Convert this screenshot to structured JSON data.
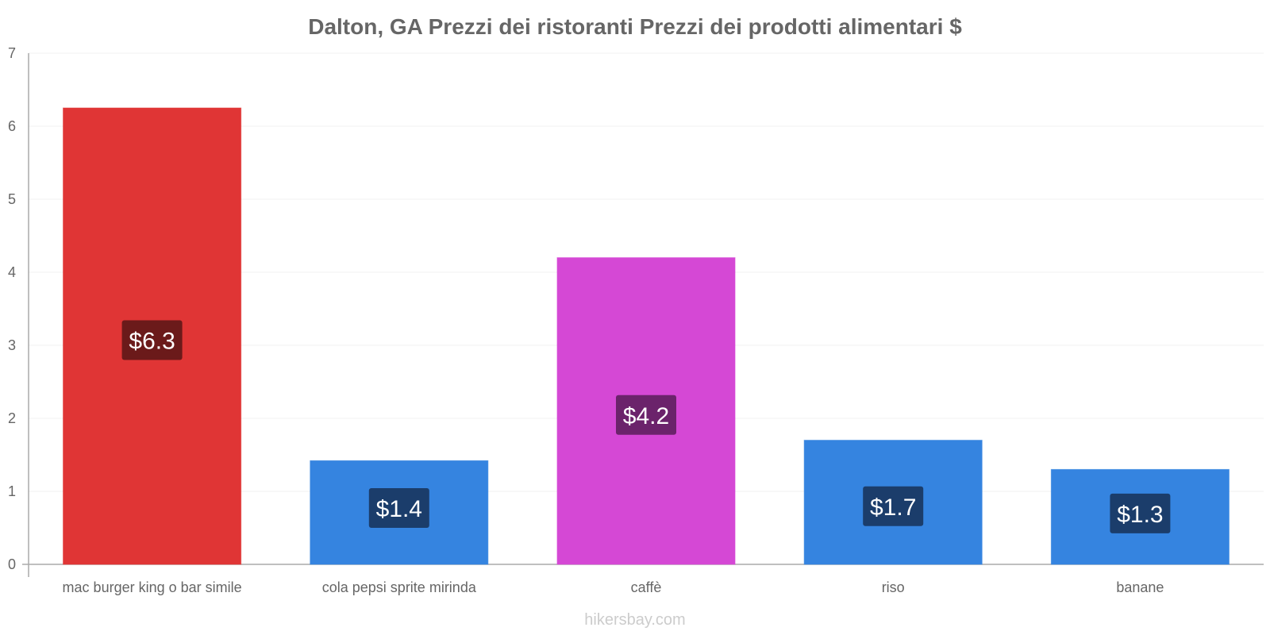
{
  "chart_data": {
    "type": "bar",
    "title": "Dalton, GA Prezzi dei ristoranti Prezzi dei prodotti alimentari $",
    "categories": [
      "mac burger king o bar simile",
      "cola pepsi sprite mirinda",
      "caffè",
      "riso",
      "banane"
    ],
    "values": [
      6.25,
      1.42,
      4.2,
      1.7,
      1.3
    ],
    "value_labels": [
      "$6.3",
      "$1.4",
      "$4.2",
      "$1.7",
      "$1.3"
    ],
    "bar_colors": [
      "#e03535",
      "#3584e0",
      "#d548d5",
      "#3584e0",
      "#3584e0"
    ],
    "label_bg_colors": [
      "#6b1a1a",
      "#1b3d6b",
      "#6b236b",
      "#1b3d6b",
      "#1b3d6b"
    ],
    "ylim": [
      0,
      7
    ],
    "yticks": [
      "0",
      "1",
      "2",
      "3",
      "4",
      "5",
      "6",
      "7"
    ],
    "xlabel": "",
    "ylabel": "",
    "grid": true
  },
  "watermark": "hikersbay.com",
  "colors": {
    "axis": "#aaaaaa",
    "grid": "#f0f0f0",
    "text": "#666666"
  }
}
